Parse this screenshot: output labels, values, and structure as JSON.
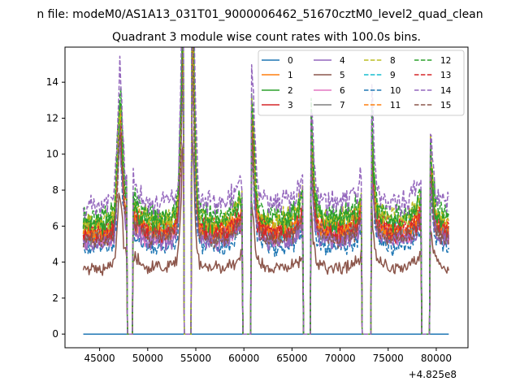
{
  "chart_data": {
    "type": "line",
    "suptitle": "n file: modeM0/AS1A13_031T01_9000006462_51670cztM0_level2_quad_clean",
    "title": "Quadrant 3 module wise count rates with 100.0s bins.",
    "xlabel": "",
    "ylabel": "",
    "x_offset_label": "+4.825e8",
    "xlim": [
      41400,
      83300
    ],
    "ylim": [
      -0.76,
      15.95
    ],
    "x_ticks": [
      45000,
      50000,
      55000,
      60000,
      65000,
      70000,
      75000,
      80000
    ],
    "y_ticks": [
      0,
      2,
      4,
      6,
      8,
      10,
      12,
      14
    ],
    "grid": false,
    "legend_position": "top-right",
    "legend_columns": 4,
    "x_start": 43300,
    "x_end": 81300,
    "bin_seconds": 100,
    "gaps": [
      [
        47900,
        48400
      ],
      [
        53800,
        54500
      ],
      [
        59900,
        60700
      ],
      [
        66200,
        66900
      ],
      [
        72300,
        73200
      ],
      [
        78500,
        79300
      ]
    ],
    "flares": [
      {
        "x": 47100,
        "amp": 1.0
      },
      {
        "x": 53700,
        "amp": 1.5
      },
      {
        "x": 54600,
        "amp": 1.8
      },
      {
        "x": 60800,
        "amp": 0.85
      },
      {
        "x": 66900,
        "amp": 0.75
      },
      {
        "x": 73200,
        "amp": 0.7
      },
      {
        "x": 79300,
        "amp": 0.5
      }
    ],
    "series": [
      {
        "name": "0",
        "color": "#1f77b4",
        "dash": "solid",
        "level": 0.0
      },
      {
        "name": "1",
        "color": "#ff7f0e",
        "dash": "solid",
        "level": 5.6
      },
      {
        "name": "2",
        "color": "#2ca02c",
        "dash": "solid",
        "level": 6.1
      },
      {
        "name": "3",
        "color": "#d62728",
        "dash": "solid",
        "level": 5.4
      },
      {
        "name": "4",
        "color": "#9467bd",
        "dash": "solid",
        "level": 5.0
      },
      {
        "name": "5",
        "color": "#8c564b",
        "dash": "solid",
        "level": 3.6
      },
      {
        "name": "6",
        "color": "#e377c2",
        "dash": "solid",
        "level": 5.2
      },
      {
        "name": "7",
        "color": "#7f7f7f",
        "dash": "solid",
        "level": 5.3
      },
      {
        "name": "8",
        "color": "#bcbd22",
        "dash": "dashed",
        "level": 6.2
      },
      {
        "name": "9",
        "color": "#17becf",
        "dash": "dashed",
        "level": 5.5
      },
      {
        "name": "10",
        "color": "#1f77b4",
        "dash": "dashed",
        "level": 4.7
      },
      {
        "name": "11",
        "color": "#ff7f0e",
        "dash": "dashed",
        "level": 5.7
      },
      {
        "name": "12",
        "color": "#2ca02c",
        "dash": "dashed",
        "level": 6.4
      },
      {
        "name": "13",
        "color": "#d62728",
        "dash": "dashed",
        "level": 5.8
      },
      {
        "name": "14",
        "color": "#9467bd",
        "dash": "dashed",
        "level": 7.1
      },
      {
        "name": "15",
        "color": "#8c564b",
        "dash": "dashed",
        "level": 5.2
      }
    ]
  }
}
